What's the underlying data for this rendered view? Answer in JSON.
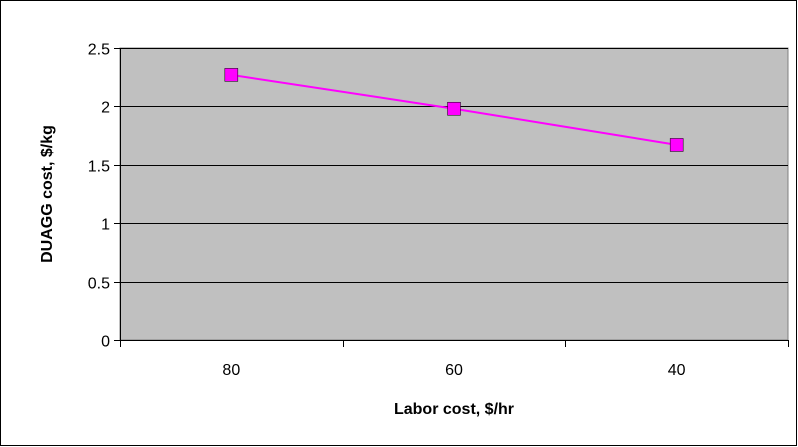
{
  "chart_data": {
    "type": "line",
    "title": "",
    "xlabel": "Labor cost, $/hr",
    "ylabel": "DUAGG cost, $/kg",
    "categories": [
      "80",
      "60",
      "40"
    ],
    "series": [
      {
        "values": [
          2.27,
          1.98,
          1.67
        ]
      }
    ],
    "ylim": [
      0,
      2.5
    ],
    "yticks": [
      "0",
      "0.5",
      "1",
      "1.5",
      "2",
      "2.5"
    ],
    "grid": true,
    "legend": "none"
  },
  "colors": {
    "plot_background": "#c0c0c0",
    "series_line": "#ff00ff",
    "marker": "#ff00ff",
    "gridline": "#000000"
  }
}
